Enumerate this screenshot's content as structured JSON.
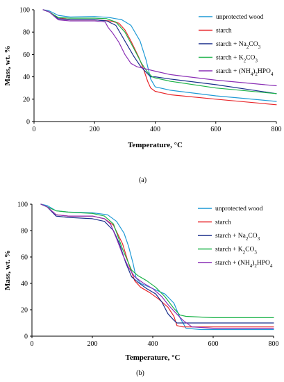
{
  "chart_data": [
    {
      "type": "line",
      "panel_label": "(a)",
      "xlabel": "Temperature, °C",
      "ylabel": "Mass, wt. %",
      "xlim": [
        0,
        800
      ],
      "ylim": [
        0,
        100
      ],
      "xticks": [
        0,
        200,
        400,
        600,
        800
      ],
      "yticks": [
        0,
        20,
        40,
        60,
        80,
        100
      ],
      "grid": false,
      "legend_position": "top-right",
      "series": [
        {
          "name": "unprotected wood",
          "color": "#1f9ad6",
          "points": [
            [
              30,
              100
            ],
            [
              50,
              99
            ],
            [
              80,
              95
            ],
            [
              120,
              93.5
            ],
            [
              200,
              94
            ],
            [
              250,
              93
            ],
            [
              290,
              91
            ],
            [
              320,
              86
            ],
            [
              350,
              72
            ],
            [
              370,
              55
            ],
            [
              385,
              38
            ],
            [
              400,
              31
            ],
            [
              450,
              28
            ],
            [
              600,
              23
            ],
            [
              800,
              18
            ]
          ]
        },
        {
          "name": "starch",
          "color": "#e8262a",
          "points": [
            [
              30,
              100
            ],
            [
              50,
              98
            ],
            [
              80,
              93
            ],
            [
              120,
              91
            ],
            [
              200,
              91
            ],
            [
              250,
              90
            ],
            [
              280,
              88
            ],
            [
              300,
              82
            ],
            [
              320,
              72
            ],
            [
              345,
              58
            ],
            [
              360,
              48
            ],
            [
              375,
              36
            ],
            [
              385,
              30
            ],
            [
              400,
              27
            ],
            [
              450,
              24
            ],
            [
              600,
              20
            ],
            [
              800,
              15
            ]
          ]
        },
        {
          "name": "starch + Na₂CO₃",
          "color": "#1a2f8c",
          "points": [
            [
              30,
              100
            ],
            [
              50,
              98
            ],
            [
              80,
              92
            ],
            [
              120,
              91
            ],
            [
              200,
              91
            ],
            [
              240,
              90
            ],
            [
              270,
              86
            ],
            [
              300,
              72
            ],
            [
              330,
              58
            ],
            [
              350,
              50
            ],
            [
              370,
              44
            ],
            [
              385,
              40
            ],
            [
              400,
              40
            ],
            [
              450,
              38
            ],
            [
              600,
              33
            ],
            [
              800,
              25
            ]
          ]
        },
        {
          "name": "starch + K₂CO₃",
          "color": "#1db34a",
          "points": [
            [
              30,
              100
            ],
            [
              50,
              98
            ],
            [
              80,
              93
            ],
            [
              120,
              92.5
            ],
            [
              200,
              92.5
            ],
            [
              240,
              92
            ],
            [
              270,
              89
            ],
            [
              300,
              80
            ],
            [
              330,
              65
            ],
            [
              355,
              52
            ],
            [
              375,
              44
            ],
            [
              390,
              40
            ],
            [
              400,
              39
            ],
            [
              450,
              36
            ],
            [
              600,
              30
            ],
            [
              800,
              25
            ]
          ]
        },
        {
          "name": "starch + (NH₄)₂HPO₄",
          "color": "#8a2fb5",
          "points": [
            [
              30,
              100
            ],
            [
              50,
              98
            ],
            [
              80,
              91
            ],
            [
              120,
              90
            ],
            [
              200,
              90
            ],
            [
              235,
              89
            ],
            [
              245,
              84
            ],
            [
              260,
              79
            ],
            [
              280,
              71
            ],
            [
              300,
              60
            ],
            [
              320,
              52
            ],
            [
              340,
              49
            ],
            [
              370,
              47
            ],
            [
              400,
              45
            ],
            [
              450,
              42
            ],
            [
              600,
              37
            ],
            [
              800,
              32
            ]
          ]
        }
      ]
    },
    {
      "type": "line",
      "panel_label": "(b)",
      "xlabel": "Temperature, °C",
      "ylabel": "Mass, wt. %",
      "xlim": [
        0,
        800
      ],
      "ylim": [
        0,
        100
      ],
      "xticks": [
        0,
        200,
        400,
        600,
        800
      ],
      "yticks": [
        0,
        20,
        40,
        60,
        80,
        100
      ],
      "grid": false,
      "legend_position": "top-right",
      "series": [
        {
          "name": "unprotected wood",
          "color": "#1f9ad6",
          "points": [
            [
              30,
              100
            ],
            [
              50,
              99
            ],
            [
              80,
              95
            ],
            [
              120,
              94
            ],
            [
              200,
              93.5
            ],
            [
              250,
              92
            ],
            [
              280,
              87
            ],
            [
              305,
              78
            ],
            [
              320,
              68
            ],
            [
              335,
              55
            ],
            [
              345,
              44
            ],
            [
              360,
              40
            ],
            [
              400,
              36
            ],
            [
              440,
              32
            ],
            [
              470,
              25
            ],
            [
              490,
              14
            ],
            [
              510,
              6
            ],
            [
              560,
              5
            ],
            [
              800,
              5
            ]
          ]
        },
        {
          "name": "starch",
          "color": "#e8262a",
          "points": [
            [
              30,
              100
            ],
            [
              50,
              98
            ],
            [
              80,
              92
            ],
            [
              120,
              91
            ],
            [
              200,
              91
            ],
            [
              240,
              89
            ],
            [
              270,
              84
            ],
            [
              300,
              70
            ],
            [
              320,
              55
            ],
            [
              340,
              42
            ],
            [
              360,
              37
            ],
            [
              390,
              33
            ],
            [
              420,
              28
            ],
            [
              450,
              22
            ],
            [
              470,
              15
            ],
            [
              480,
              8
            ],
            [
              500,
              7
            ],
            [
              600,
              7
            ],
            [
              800,
              7
            ]
          ]
        },
        {
          "name": "starch + Na₂CO₃",
          "color": "#1a2f8c",
          "points": [
            [
              30,
              100
            ],
            [
              50,
              98
            ],
            [
              80,
              91
            ],
            [
              120,
              90
            ],
            [
              200,
              89
            ],
            [
              240,
              87
            ],
            [
              270,
              80
            ],
            [
              290,
              70
            ],
            [
              310,
              56
            ],
            [
              330,
              45
            ],
            [
              350,
              41
            ],
            [
              380,
              36
            ],
            [
              410,
              32
            ],
            [
              430,
              26
            ],
            [
              450,
              17
            ],
            [
              470,
              12
            ],
            [
              480,
              10
            ],
            [
              600,
              10
            ],
            [
              800,
              10
            ]
          ]
        },
        {
          "name": "starch + K₂CO₃",
          "color": "#1db34a",
          "points": [
            [
              30,
              100
            ],
            [
              50,
              98
            ],
            [
              80,
              95
            ],
            [
              120,
              94
            ],
            [
              200,
              93
            ],
            [
              240,
              91
            ],
            [
              270,
              85
            ],
            [
              300,
              66
            ],
            [
              330,
              50
            ],
            [
              350,
              46
            ],
            [
              380,
              42
            ],
            [
              410,
              37
            ],
            [
              440,
              30
            ],
            [
              470,
              21
            ],
            [
              490,
              16
            ],
            [
              510,
              15
            ],
            [
              600,
              14
            ],
            [
              800,
              14
            ]
          ]
        },
        {
          "name": "starch + (NH₄)₂HPO₄",
          "color": "#8a2fb5",
          "points": [
            [
              30,
              100
            ],
            [
              50,
              98
            ],
            [
              80,
              92
            ],
            [
              120,
              91
            ],
            [
              200,
              91
            ],
            [
              240,
              89
            ],
            [
              260,
              85
            ],
            [
              280,
              74
            ],
            [
              300,
              62
            ],
            [
              320,
              52
            ],
            [
              340,
              45
            ],
            [
              370,
              40
            ],
            [
              400,
              36
            ],
            [
              430,
              30
            ],
            [
              450,
              24
            ],
            [
              470,
              19
            ],
            [
              500,
              12
            ],
            [
              530,
              7
            ],
            [
              600,
              6
            ],
            [
              800,
              6
            ]
          ]
        }
      ]
    }
  ]
}
